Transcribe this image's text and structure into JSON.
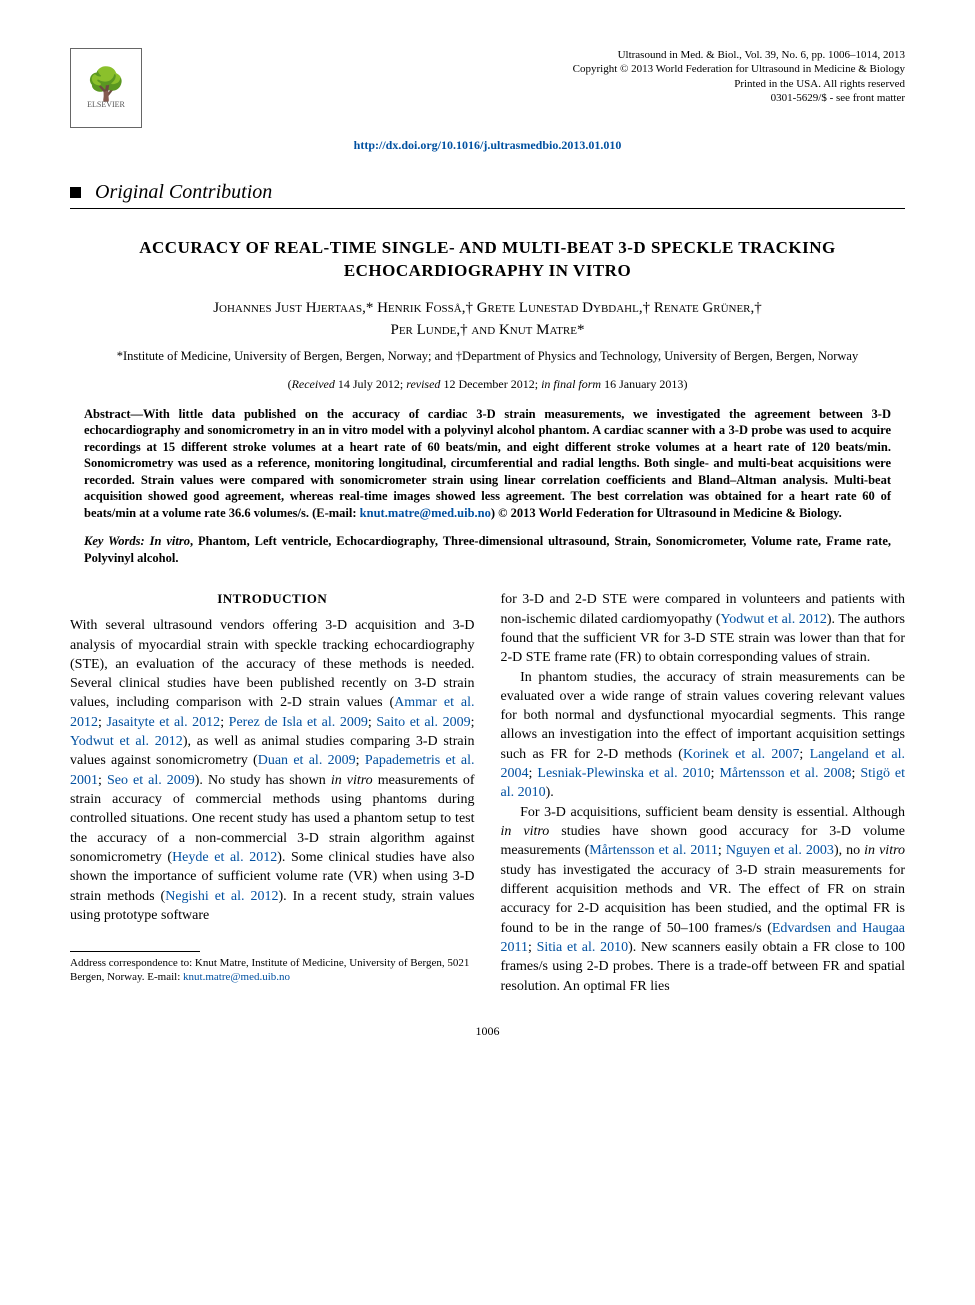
{
  "header": {
    "publisher_logo": "ELSEVIER",
    "citation": "Ultrasound in Med. & Biol., Vol. 39, No. 6, pp. 1006–1014, 2013",
    "copyright": "Copyright © 2013 World Federation for Ultrasound in Medicine & Biology",
    "printed": "Printed in the USA. All rights reserved",
    "issn": "0301-5629/$ - see front matter",
    "doi_url": "http://dx.doi.org/10.1016/j.ultrasmedbio.2013.01.010"
  },
  "section_label": "Original Contribution",
  "title": "ACCURACY OF REAL-TIME SINGLE- AND MULTI-BEAT 3-D SPECKLE TRACKING ECHOCARDIOGRAPHY IN VITRO",
  "authors_line1": "Johannes Just Hjertaas,* Henrik Fosså,† Grete Lunestad Dybdahl,† Renate Grüner,†",
  "authors_line2": "Per Lunde,† and Knut Matre*",
  "affiliations": "*Institute of Medicine, University of Bergen, Bergen, Norway; and †Department of Physics and Technology, University of Bergen, Bergen, Norway",
  "dates": {
    "received_label": "Received",
    "received": "14 July 2012",
    "revised_label": "revised",
    "revised": "12 December 2012",
    "final_label": "in final form",
    "final": "16 January 2013"
  },
  "abstract_label": "Abstract—",
  "abstract_body": "With little data published on the accuracy of cardiac 3-D strain measurements, we investigated the agreement between 3-D echocardiography and sonomicrometry in an in vitro model with a polyvinyl alcohol phantom. A cardiac scanner with a 3-D probe was used to acquire recordings at 15 different stroke volumes at a heart rate of 60 beats/min, and eight different stroke volumes at a heart rate of 120 beats/min. Sonomicrometry was used as a reference, monitoring longitudinal, circumferential and radial lengths. Both single- and multi-beat acquisitions were recorded. Strain values were compared with sonomicrometer strain using linear correlation coefficients and Bland–Altman analysis. Multi-beat acquisition showed good agreement, whereas real-time images showed less agreement. The best correlation was obtained for a heart rate 60 of beats/min at a volume rate 36.6 volumes/s. (E-mail: ",
  "abstract_email": "knut.matre@med.uib.no",
  "abstract_tail": ")   © 2013 World Federation for Ultrasound in Medicine & Biology.",
  "keywords_label": "Key Words:",
  "keywords_first": "In vitro",
  "keywords_rest": ", Phantom, Left ventricle, Echocardiography, Three-dimensional ultrasound, Strain, Sonomicrometer, Volume rate, Frame rate, Polyvinyl alcohol.",
  "intro_heading": "INTRODUCTION",
  "col1_p1a": "With several ultrasound vendors offering 3-D acquisition and 3-D analysis of myocardial strain with speckle tracking echocardiography (STE), an evaluation of the accuracy of these methods is needed. Several clinical studies have been published recently on 3-D strain values, including comparison with 2-D strain values (",
  "col1_p1_ref1": "Ammar et al. 2012",
  "col1_p1b": "; ",
  "col1_p1_ref2": "Jasaityte et al. 2012",
  "col1_p1c": "; ",
  "col1_p1_ref3": "Perez de Isla et al. 2009",
  "col1_p1d": "; ",
  "col1_p1_ref4": "Saito et al. 2009",
  "col1_p1e": "; ",
  "col1_p1_ref5": "Yodwut et al. 2012",
  "col1_p1f": "), as well as animal studies comparing 3-D strain values against sonomicrometry (",
  "col1_p1_ref6": "Duan et al. 2009",
  "col1_p1g": "; ",
  "col1_p1_ref7": "Papademetris et al. 2001",
  "col1_p1h": "; ",
  "col1_p1_ref8": "Seo et al. 2009",
  "col1_p1i": "). No study has shown ",
  "col1_p1_invitro": "in vitro",
  "col1_p1j": " measurements of strain accuracy of commercial methods using phantoms during controlled situations. One recent study has used a phantom setup to test the accuracy of a non-commercial 3-D strain algorithm against sonomicrometry (",
  "col1_p1_ref9": "Heyde et al. 2012",
  "col1_p1k": "). Some clinical studies have also shown the importance of sufficient volume rate (VR) when using 3-D strain methods (",
  "col1_p1_ref10": "Negishi et al. 2012",
  "col1_p1l": "). In a recent study, strain values using prototype software",
  "col2_p1a": "for 3-D and 2-D STE were compared in volunteers and patients with non-ischemic dilated cardiomyopathy (",
  "col2_p1_ref1": "Yodwut et al. 2012",
  "col2_p1b": "). The authors found that the sufficient VR for 3-D STE strain was lower than that for 2-D STE frame rate (FR) to obtain corresponding values of strain.",
  "col2_p2a": "In phantom studies, the accuracy of strain measurements can be evaluated over a wide range of strain values covering relevant values for both normal and dysfunctional myocardial segments. This range allows an investigation into the effect of important acquisition settings such as FR for 2-D methods (",
  "col2_p2_ref1": "Korinek et al. 2007",
  "col2_p2b": "; ",
  "col2_p2_ref2": "Langeland et al. 2004",
  "col2_p2c": "; ",
  "col2_p2_ref3": "Lesniak-Plewinska et al. 2010",
  "col2_p2d": "; ",
  "col2_p2_ref4": "Mårtensson et al. 2008",
  "col2_p2e": "; ",
  "col2_p2_ref5": "Stigö et al. 2010",
  "col2_p2f": ").",
  "col2_p3a": "For 3-D acquisitions, sufficient beam density is essential. Although ",
  "col2_p3_invitro": "in vitro",
  "col2_p3b": " studies have shown good accuracy for 3-D volume measurements (",
  "col2_p3_ref1": "Mårtensson et al. 2011",
  "col2_p3c": "; ",
  "col2_p3_ref2": "Nguyen et al. 2003",
  "col2_p3d": "), no ",
  "col2_p3_invitro2": "in vitro",
  "col2_p3e": " study has investigated the accuracy of 3-D strain measurements for different acquisition methods and VR. The effect of FR on strain accuracy for 2-D acquisition has been studied, and the optimal FR is found to be in the range of 50–100 frames/s (",
  "col2_p3_ref3": "Edvardsen and Haugaa 2011",
  "col2_p3f": "; ",
  "col2_p3_ref4": "Sitia et al. 2010",
  "col2_p3g": "). New scanners easily obtain a FR close to 100 frames/s using 2-D probes. There is a trade-off between FR and spatial resolution. An optimal FR lies",
  "footnote_a": "Address correspondence to: Knut Matre, Institute of Medicine, University of Bergen, 5021 Bergen, Norway. E-mail: ",
  "footnote_email": "knut.matre@med.uib.no",
  "page_number": "1006",
  "colors": {
    "link": "#0050a0",
    "text": "#000000",
    "meta": "#000000",
    "rule": "#000000"
  }
}
